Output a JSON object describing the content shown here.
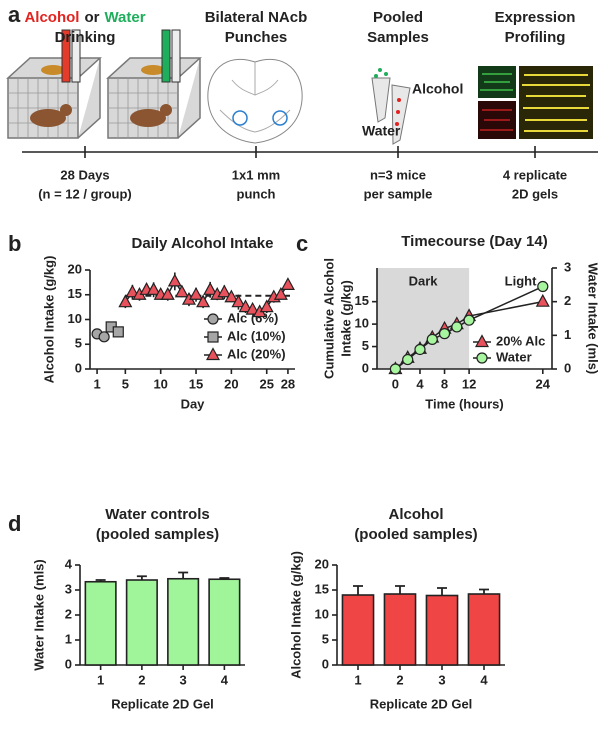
{
  "panel_labels": [
    "a",
    "b",
    "c",
    "d"
  ],
  "panel_a": {
    "steps": [
      {
        "title": [
          [
            {
              "text": "Alcohol",
              "color": "#e3231f"
            },
            {
              "text": "or",
              "color": "#222222"
            },
            {
              "text": "Water",
              "color": "#1fae5b"
            }
          ],
          "Drinking"
        ],
        "caption": [
          "28 Days",
          "(n = 12 / group)"
        ]
      },
      {
        "title": [
          "Bilateral NAcb",
          "Punches"
        ],
        "caption": [
          "1x1 mm",
          "punch"
        ]
      },
      {
        "title": [
          "Pooled",
          "Samples"
        ],
        "caption": [
          "n=3 mice",
          "per sample"
        ]
      },
      {
        "title": [
          "Expression",
          "Profiling"
        ],
        "caption": [
          "4 replicate",
          "2D gels"
        ]
      }
    ],
    "tube_labels": [
      {
        "text": "Alcohol",
        "color": "#e3231f"
      },
      {
        "text": "Water",
        "color": "#1fae5b"
      }
    ]
  },
  "chart_data": [
    {
      "type": "line",
      "title": "Daily Alcohol Intake",
      "ylabel": [
        "Alcohol Intake (g/kg)"
      ],
      "xlabel": "Day",
      "xlim": [
        0,
        29
      ],
      "xticks": [
        1,
        5,
        10,
        15,
        20,
        25,
        28
      ],
      "ylim": [
        0,
        20
      ],
      "yticks": [
        0,
        5,
        10,
        15,
        20
      ],
      "ref_line": 14.8,
      "legend": "lower right",
      "series": [
        {
          "name": "Alc (6%)",
          "color": "#a6a6a6",
          "marker": "circle",
          "x": [
            1,
            2
          ],
          "values": [
            7.1,
            6.5
          ],
          "errors": [
            0.4,
            0.5
          ]
        },
        {
          "name": "Alc (10%)",
          "color": "#a6a6a6",
          "marker": "square",
          "x": [
            3,
            4
          ],
          "values": [
            8.5,
            7.5
          ],
          "errors": [
            0.7,
            0.6
          ]
        },
        {
          "name": "Alc (20%)",
          "color": "#e8525c",
          "marker": "triangle",
          "x": [
            5,
            6,
            7,
            8,
            9,
            10,
            11,
            12,
            13,
            14,
            15,
            16,
            17,
            18,
            19,
            20,
            21,
            22,
            23,
            24,
            25,
            26,
            27,
            28
          ],
          "values": [
            13.5,
            15.5,
            15,
            16,
            16,
            15,
            15,
            17.7,
            15.5,
            14,
            15,
            13.5,
            16,
            15,
            15.5,
            14.5,
            13.5,
            12.5,
            12,
            11.5,
            12.5,
            14.5,
            15,
            17
          ],
          "errors": [
            1.2,
            1.5,
            1.2,
            1.3,
            1.5,
            1.0,
            1.2,
            1.8,
            1.0,
            1.3,
            1.4,
            1.2,
            1.6,
            1.1,
            1.4,
            1.0,
            1.5,
            1.2,
            1.0,
            0.9,
            1.2,
            1.1,
            1.0,
            0.9
          ]
        }
      ]
    },
    {
      "type": "line",
      "title": "Timecourse (Day 14)",
      "ylabel": [
        "Cumulative Alcohol",
        "Intake (g/kg)"
      ],
      "y2label": "Water Intake  (mls)",
      "xlabel": "Time  (hours)",
      "xlim": [
        -3,
        25.5
      ],
      "xticks": [
        0,
        4,
        8,
        12,
        24
      ],
      "ylim": [
        0,
        22.5
      ],
      "yticks": [
        0,
        5,
        10,
        15
      ],
      "y2lim": [
        0,
        3
      ],
      "y2ticks": [
        0,
        1,
        2,
        3
      ],
      "shade_until": 12,
      "annotations": [
        "Dark",
        "Light"
      ],
      "legend": "lower right",
      "series": [
        {
          "name": "20% Alc",
          "color": "#e8525c",
          "marker": "triangle",
          "x": [
            0,
            2,
            4,
            6,
            8,
            10,
            12,
            24
          ],
          "values": [
            0,
            2.5,
            4.5,
            7,
            9,
            10,
            11.8,
            15
          ]
        },
        {
          "name": "Water",
          "color": "#a8f5a0",
          "marker": "circle",
          "axis": "y2",
          "x": [
            0,
            2,
            4,
            6,
            8,
            10,
            12,
            24
          ],
          "values": [
            0,
            0.28,
            0.58,
            0.88,
            1.05,
            1.25,
            1.45,
            2.45
          ]
        }
      ]
    },
    {
      "type": "bar",
      "title": [
        "Water controls",
        "(pooled samples)"
      ],
      "ylabel": [
        "Water Intake (mls)"
      ],
      "xlabel": "Replicate 2D Gel",
      "categories": [
        "1",
        "2",
        "3",
        "4"
      ],
      "values": [
        3.33,
        3.4,
        3.45,
        3.43
      ],
      "errors": [
        0.07,
        0.15,
        0.25,
        0.05
      ],
      "color": "#a0f59a",
      "ylim": [
        0,
        4
      ],
      "yticks": [
        0,
        1,
        2,
        3,
        4
      ]
    },
    {
      "type": "bar",
      "title": [
        "Alcohol",
        "(pooled samples)"
      ],
      "ylabel": [
        "Alcohol Intake (g/kg)"
      ],
      "xlabel": "Replicate 2D Gel",
      "categories": [
        "1",
        "2",
        "3",
        "4"
      ],
      "values": [
        14,
        14.2,
        13.9,
        14.2
      ],
      "errors": [
        1.8,
        1.6,
        1.5,
        0.9
      ],
      "color": "#f04545",
      "ylim": [
        0,
        20
      ],
      "yticks": [
        0,
        5,
        10,
        15,
        20
      ]
    }
  ]
}
